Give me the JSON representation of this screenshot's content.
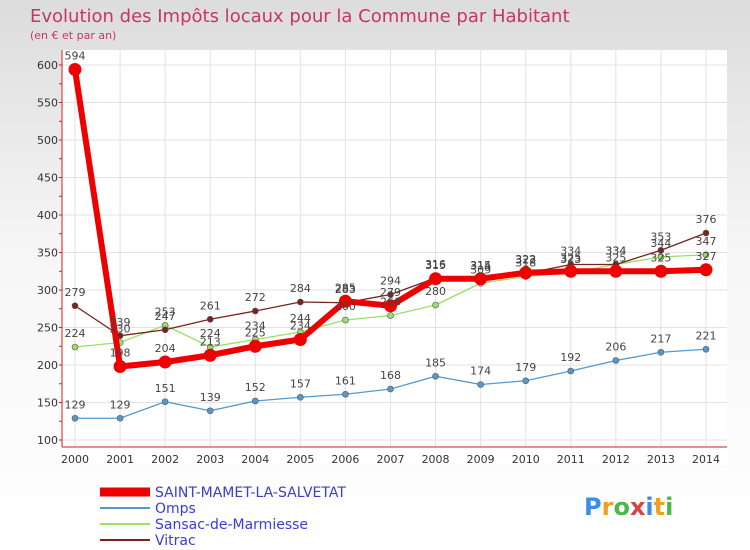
{
  "chart_data": {
    "type": "line",
    "title": "Evolution des Impôts locaux pour la Commune par Habitant",
    "subtitle": "(en € et par an)",
    "xlabel": "",
    "ylabel": "",
    "x": [
      "2000",
      "2001",
      "2002",
      "2003",
      "2004",
      "2005",
      "2006",
      "2007",
      "2008",
      "2009",
      "2010",
      "2011",
      "2012",
      "2013",
      "2014"
    ],
    "ylim": [
      100,
      600
    ],
    "yticks": [
      100,
      150,
      200,
      250,
      300,
      350,
      400,
      450,
      500,
      550,
      600
    ],
    "grid": true,
    "legend_position": "bottom-left",
    "series": [
      {
        "name": "SAINT-MAMET-LA-SALVETAT",
        "color": "#ee0000",
        "values": [
          594,
          198,
          204,
          213,
          225,
          234,
          285,
          279,
          315,
          315,
          323,
          325,
          325,
          325,
          327
        ]
      },
      {
        "name": "Omps",
        "color": "#5599cc",
        "values": [
          129,
          129,
          151,
          139,
          152,
          157,
          161,
          168,
          185,
          174,
          179,
          192,
          206,
          217,
          221
        ]
      },
      {
        "name": "Sansac-de-Marmiesse",
        "color": "#99e066",
        "values": [
          224,
          230,
          253,
          224,
          234,
          244,
          260,
          266,
          280,
          309,
          318,
          323,
          334,
          344,
          347
        ]
      },
      {
        "name": "Vitrac",
        "color": "#7a2222",
        "values": [
          279,
          239,
          247,
          261,
          272,
          284,
          283,
          294,
          316,
          314,
          322,
          334,
          334,
          353,
          376
        ]
      }
    ],
    "data_labels": [
      {
        "series": 0,
        "texts": [
          "594",
          "198",
          "204",
          "213",
          "225",
          "234",
          "285",
          "279",
          "315",
          "315",
          "323",
          "325",
          "325",
          "325",
          "327"
        ]
      },
      {
        "series": 1,
        "texts": [
          "129",
          "129",
          "151",
          "139",
          "152",
          "157",
          "161",
          "168",
          "185",
          "174",
          "179",
          "192",
          "206",
          "217",
          "221"
        ]
      },
      {
        "series": 2,
        "texts": [
          "224",
          "230",
          "253",
          "224",
          "234",
          "244",
          "260",
          "266",
          "280",
          "309",
          "318",
          "323",
          "334",
          "344",
          "347"
        ]
      },
      {
        "series": 3,
        "texts": [
          "279",
          "239",
          "247",
          "261",
          "272",
          "284",
          "283",
          "294",
          "316",
          "314",
          "322",
          "334",
          "334",
          "353",
          "376"
        ]
      }
    ]
  },
  "branding": {
    "logo_text": "Proxiti",
    "colors": [
      "#3a8ee6",
      "#f0a020",
      "#4cb84c",
      "#d94040"
    ]
  }
}
